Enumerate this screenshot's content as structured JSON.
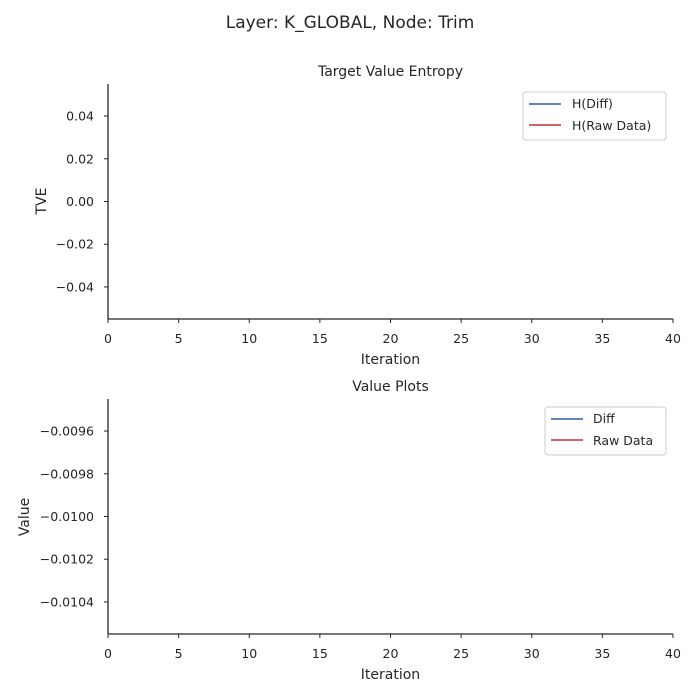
{
  "figure": {
    "suptitle": "Layer: K_GLOBAL, Node: Trim"
  },
  "colors": {
    "series_blue": "#4c72b0",
    "series_red": "#c44e52"
  },
  "chart_data": [
    {
      "type": "line",
      "title": "Target Value Entropy",
      "xlabel": "Iteration",
      "ylabel": "TVE",
      "xlim": [
        0,
        40
      ],
      "ylim": [
        -0.055,
        0.055
      ],
      "x_ticks": [
        0,
        5,
        10,
        15,
        20,
        25,
        30,
        35,
        40
      ],
      "x_tick_labels": [
        "0",
        "5",
        "10",
        "15",
        "20",
        "25",
        "30",
        "35",
        "40"
      ],
      "y_ticks": [
        0.04,
        0.02,
        0.0,
        -0.02,
        -0.04
      ],
      "y_tick_labels": [
        "0.04",
        "0.02",
        "0.00",
        "−0.02",
        "−0.04"
      ],
      "grid": false,
      "legend_position": "top-right",
      "series": [
        {
          "name": "H(Diff)",
          "color": "#4c72b0",
          "x": [],
          "y": []
        },
        {
          "name": "H(Raw Data)",
          "color": "#c44e52",
          "x": [],
          "y": []
        }
      ]
    },
    {
      "type": "line",
      "title": "Value Plots",
      "xlabel": "Iteration",
      "ylabel": "Value",
      "xlim": [
        0,
        40
      ],
      "ylim": [
        -0.01055,
        -0.00945
      ],
      "x_ticks": [
        0,
        5,
        10,
        15,
        20,
        25,
        30,
        35,
        40
      ],
      "x_tick_labels": [
        "0",
        "5",
        "10",
        "15",
        "20",
        "25",
        "30",
        "35",
        "40"
      ],
      "y_ticks": [
        -0.0096,
        -0.0098,
        -0.01,
        -0.0102,
        -0.0104
      ],
      "y_tick_labels": [
        "−0.0096",
        "−0.0098",
        "−0.0100",
        "−0.0102",
        "−0.0104"
      ],
      "grid": false,
      "legend_position": "top-right",
      "series": [
        {
          "name": "Diff",
          "color": "#4c72b0",
          "x": [],
          "y": []
        },
        {
          "name": "Raw Data",
          "color": "#c44e52",
          "x": [],
          "y": []
        }
      ]
    }
  ]
}
